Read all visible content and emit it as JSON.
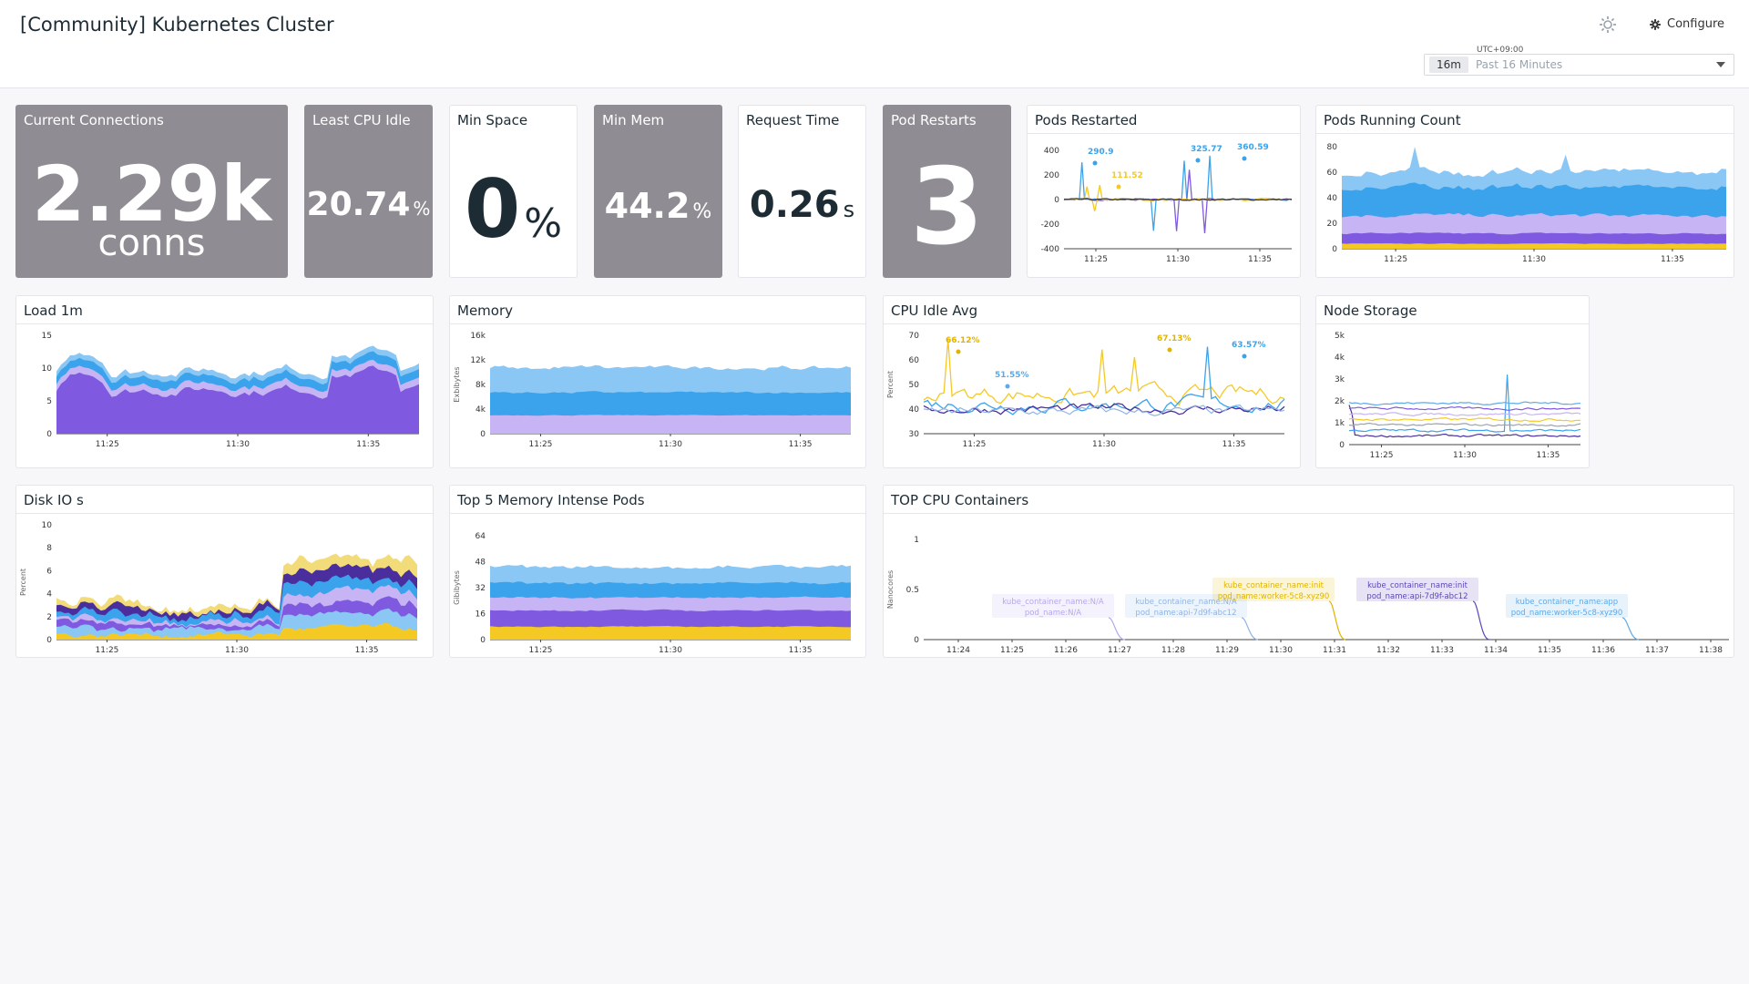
{
  "header": {
    "title": "[Community] Kubernetes Cluster",
    "configure_label": "Configure",
    "timezone": "UTC+09:00",
    "time_badge": "16m",
    "time_range": "Past 16 Minutes"
  },
  "colors": {
    "gray_tile": "#8f8d93",
    "purple": "#7f5ae0",
    "lavender": "#c7b4f4",
    "blue": "#3aa3ec",
    "light_blue": "#8ac7f5",
    "yellow": "#f5c924",
    "dark_purple": "#4b2e9e"
  },
  "query_values": {
    "current_connections": {
      "title": "Current Connections",
      "value": "2.29k",
      "unit": "conns"
    },
    "least_cpu_idle": {
      "title": "Least CPU Idle",
      "value": "20.74",
      "unit": "%"
    },
    "min_space": {
      "title": "Min Space",
      "value": "0",
      "unit": "%"
    },
    "min_mem": {
      "title": "Min Mem",
      "value": "44.2",
      "unit": "%"
    },
    "request_time": {
      "title": "Request Time",
      "value": "0.26",
      "unit": "s"
    },
    "pod_restarts": {
      "title": "Pod Restarts",
      "value": "3",
      "unit": ""
    }
  },
  "timeseries": {
    "pods_restarted": {
      "title": "Pods Restarted",
      "yticks": [
        "400",
        "200",
        "0",
        "-200",
        "-400"
      ],
      "xticks": [
        "11:25",
        "11:30",
        "11:35"
      ],
      "annotations": [
        "290.9",
        "111.52",
        "325.77",
        "360.59"
      ]
    },
    "pods_running_count": {
      "title": "Pods Running Count",
      "yticks": [
        "80",
        "60",
        "40",
        "20",
        "0"
      ],
      "xticks": [
        "11:25",
        "11:30",
        "11:35"
      ]
    },
    "load_1m": {
      "title": "Load 1m",
      "yticks": [
        "15",
        "10",
        "5",
        "0"
      ],
      "xticks": [
        "11:25",
        "11:30",
        "11:35"
      ]
    },
    "memory": {
      "title": "Memory",
      "ylabel": "Exbibytes",
      "yticks": [
        "16k",
        "12k",
        "8k",
        "4k",
        "0"
      ],
      "xticks": [
        "11:25",
        "11:30",
        "11:35"
      ]
    },
    "cpu_idle_avg": {
      "title": "CPU Idle Avg",
      "ylabel": "Percent",
      "yticks": [
        "70",
        "60",
        "50",
        "40",
        "30"
      ],
      "xticks": [
        "11:25",
        "11:30",
        "11:35"
      ],
      "annotations": [
        "66.12%",
        "51.55%",
        "67.13%",
        "63.57%"
      ]
    },
    "node_storage": {
      "title": "Node Storage",
      "yticks": [
        "5k",
        "4k",
        "3k",
        "2k",
        "1k",
        "0"
      ],
      "xticks": [
        "11:25",
        "11:30",
        "11:35"
      ]
    },
    "disk_io": {
      "title": "Disk IO s",
      "ylabel": "Percent",
      "yticks": [
        "10",
        "8",
        "6",
        "4",
        "2",
        "0"
      ],
      "xticks": [
        "11:25",
        "11:30",
        "11:35"
      ]
    },
    "top5_memory_pods": {
      "title": "Top 5 Memory Intense Pods",
      "ylabel": "Gibibytes",
      "yticks": [
        "64",
        "48",
        "32",
        "16",
        "0"
      ],
      "xticks": [
        "11:25",
        "11:30",
        "11:35"
      ]
    },
    "top_cpu_containers": {
      "title": "TOP CPU Containers",
      "ylabel": "Nanocores",
      "yticks": [
        "1",
        "0.5",
        "0"
      ],
      "xticks": [
        "11:24",
        "11:25",
        "11:26",
        "11:27",
        "11:28",
        "11:29",
        "11:30",
        "11:31",
        "11:32",
        "11:33",
        "11:34",
        "11:35",
        "11:36",
        "11:37",
        "11:38"
      ],
      "labels": [
        {
          "line1": "kube_container_name:N/A",
          "line2": "pod_name:N/A",
          "color": "#b8a7ec"
        },
        {
          "line1": "kube_container_name:N/A",
          "line2": "pod_name:api-7d9f-abc12",
          "color": "#8fb4e6"
        },
        {
          "line1": "kube_container_name:init",
          "line2": "pod_name:worker-5c8-xyz90",
          "color": "#e0b400"
        },
        {
          "line1": "kube_container_name:init",
          "line2": "pod_name:api-7d9f-abc12",
          "color": "#5b46b8"
        },
        {
          "line1": "kube_container_name:app",
          "line2": "pod_name:worker-5c8-xyz90",
          "color": "#5fa9e6"
        }
      ]
    }
  }
}
